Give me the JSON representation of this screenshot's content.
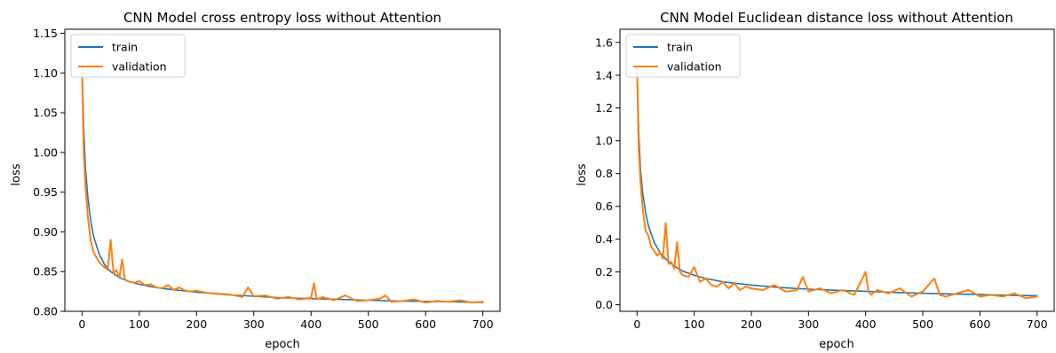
{
  "colors": {
    "train": "#1f77b4",
    "validation": "#ff7f0e"
  },
  "chart_data": [
    {
      "type": "line",
      "title": "CNN Model cross entropy loss without Attention",
      "xlabel": "epoch",
      "ylabel": "loss",
      "xlim": [
        -30,
        730
      ],
      "ylim": [
        0.8,
        1.155
      ],
      "xticks": [
        0,
        100,
        200,
        300,
        400,
        500,
        600,
        700
      ],
      "yticks": [
        "0.80",
        "0.85",
        "0.90",
        "0.95",
        "1.00",
        "1.05",
        "1.10",
        "1.15"
      ],
      "legend": {
        "position": "top-left",
        "entries": [
          "train",
          "validation"
        ]
      },
      "series": [
        {
          "name": "train",
          "x": [
            0,
            3,
            6,
            10,
            15,
            20,
            30,
            40,
            50,
            60,
            70,
            80,
            100,
            120,
            150,
            200,
            250,
            300,
            350,
            400,
            450,
            500,
            550,
            600,
            650,
            700
          ],
          "y": [
            1.11,
            1.03,
            0.98,
            0.945,
            0.915,
            0.895,
            0.872,
            0.858,
            0.85,
            0.845,
            0.841,
            0.838,
            0.834,
            0.831,
            0.828,
            0.824,
            0.821,
            0.819,
            0.817,
            0.816,
            0.815,
            0.814,
            0.813,
            0.8125,
            0.812,
            0.811
          ]
        },
        {
          "name": "validation",
          "x": [
            0,
            3,
            6,
            10,
            15,
            20,
            25,
            30,
            35,
            40,
            45,
            50,
            55,
            60,
            65,
            70,
            75,
            80,
            90,
            100,
            110,
            120,
            130,
            140,
            150,
            160,
            170,
            180,
            190,
            200,
            220,
            240,
            260,
            280,
            290,
            300,
            320,
            340,
            360,
            380,
            400,
            405,
            410,
            420,
            440,
            460,
            480,
            500,
            520,
            530,
            540,
            560,
            580,
            600,
            620,
            640,
            660,
            680,
            700
          ],
          "y": [
            1.11,
            1.0,
            0.96,
            0.92,
            0.89,
            0.875,
            0.868,
            0.862,
            0.858,
            0.855,
            0.852,
            0.89,
            0.848,
            0.852,
            0.842,
            0.865,
            0.84,
            0.838,
            0.836,
            0.838,
            0.833,
            0.834,
            0.83,
            0.829,
            0.833,
            0.827,
            0.83,
            0.826,
            0.825,
            0.826,
            0.823,
            0.822,
            0.821,
            0.818,
            0.83,
            0.819,
            0.82,
            0.816,
            0.818,
            0.815,
            0.817,
            0.835,
            0.815,
            0.818,
            0.814,
            0.82,
            0.813,
            0.814,
            0.816,
            0.82,
            0.812,
            0.813,
            0.815,
            0.811,
            0.813,
            0.812,
            0.814,
            0.811,
            0.812
          ]
        }
      ]
    },
    {
      "type": "line",
      "title": "CNN Model Euclidean distance loss without Attention",
      "xlabel": "epoch",
      "ylabel": "loss",
      "xlim": [
        -30,
        730
      ],
      "ylim": [
        -0.04,
        1.68
      ],
      "xticks": [
        0,
        100,
        200,
        300,
        400,
        500,
        600,
        700
      ],
      "yticks": [
        "0.0",
        "0.2",
        "0.4",
        "0.6",
        "0.8",
        "1.0",
        "1.2",
        "1.4",
        "1.6"
      ],
      "legend": {
        "position": "top-left",
        "entries": [
          "train",
          "validation"
        ]
      },
      "series": [
        {
          "name": "train",
          "x": [
            0,
            3,
            6,
            10,
            15,
            20,
            30,
            40,
            50,
            60,
            70,
            80,
            100,
            120,
            150,
            200,
            250,
            300,
            350,
            400,
            450,
            500,
            550,
            600,
            650,
            700
          ],
          "y": [
            1.45,
            1.05,
            0.82,
            0.68,
            0.56,
            0.48,
            0.38,
            0.32,
            0.28,
            0.25,
            0.225,
            0.205,
            0.18,
            0.16,
            0.14,
            0.12,
            0.105,
            0.095,
            0.088,
            0.082,
            0.075,
            0.07,
            0.066,
            0.062,
            0.058,
            0.055
          ]
        },
        {
          "name": "validation",
          "x": [
            0,
            3,
            6,
            10,
            15,
            20,
            25,
            30,
            35,
            40,
            45,
            50,
            55,
            60,
            65,
            70,
            75,
            80,
            90,
            100,
            110,
            120,
            130,
            140,
            150,
            160,
            170,
            180,
            190,
            200,
            220,
            240,
            260,
            280,
            290,
            300,
            320,
            340,
            360,
            380,
            400,
            405,
            410,
            420,
            440,
            460,
            480,
            500,
            520,
            530,
            540,
            560,
            580,
            600,
            620,
            640,
            660,
            680,
            700
          ],
          "y": [
            1.42,
            0.95,
            0.75,
            0.58,
            0.45,
            0.42,
            0.35,
            0.33,
            0.3,
            0.32,
            0.28,
            0.5,
            0.25,
            0.26,
            0.22,
            0.38,
            0.2,
            0.18,
            0.17,
            0.23,
            0.14,
            0.16,
            0.12,
            0.11,
            0.14,
            0.1,
            0.13,
            0.09,
            0.11,
            0.1,
            0.09,
            0.12,
            0.08,
            0.09,
            0.17,
            0.08,
            0.1,
            0.07,
            0.09,
            0.06,
            0.2,
            0.08,
            0.06,
            0.09,
            0.07,
            0.1,
            0.05,
            0.08,
            0.16,
            0.06,
            0.05,
            0.07,
            0.09,
            0.05,
            0.06,
            0.05,
            0.07,
            0.04,
            0.05
          ]
        }
      ]
    }
  ]
}
